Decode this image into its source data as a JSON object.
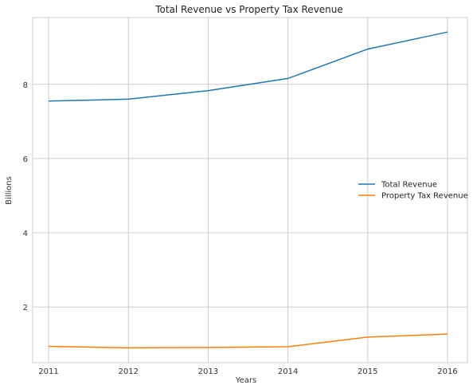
{
  "chart_data": {
    "type": "line",
    "title": "Total Revenue vs Property Tax Revenue",
    "xlabel": "Years",
    "ylabel": "Billions",
    "x": [
      2011,
      2012,
      2013,
      2014,
      2015,
      2016
    ],
    "x_tick_labels": [
      "2011",
      "2012",
      "2013",
      "2014",
      "2015",
      "2016"
    ],
    "y_ticks": [
      2,
      4,
      6,
      8
    ],
    "y_tick_labels": [
      "2",
      "4",
      "6",
      "8"
    ],
    "xlim": [
      2010.8,
      2016.25
    ],
    "ylim": [
      0.5,
      9.8
    ],
    "grid": true,
    "legend_position": "center-right",
    "series": [
      {
        "name": "Total Revenue",
        "color": "#1f77b4",
        "values": [
          7.55,
          7.6,
          7.83,
          8.16,
          8.95,
          9.41
        ]
      },
      {
        "name": "Property Tax Revenue",
        "color": "#ff7f0e",
        "values": [
          0.94,
          0.9,
          0.91,
          0.93,
          1.19,
          1.27
        ]
      }
    ]
  }
}
